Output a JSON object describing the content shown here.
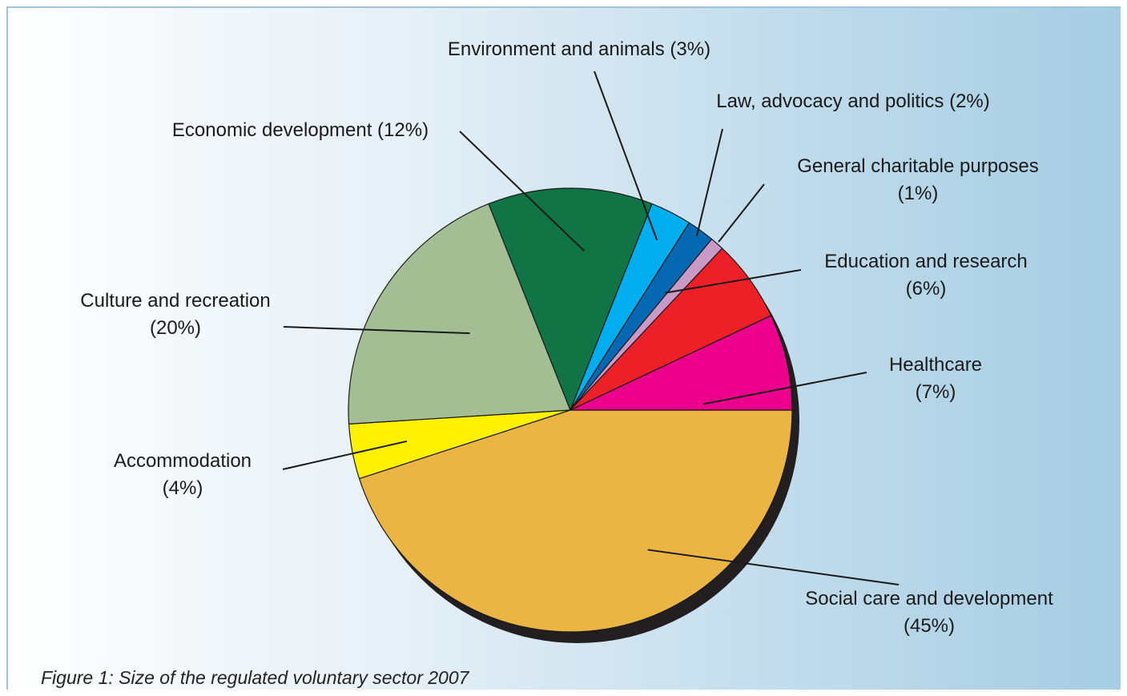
{
  "caption": "Figure 1: Size of the regulated voluntary sector 2007",
  "chart_data": {
    "type": "pie",
    "categories": [
      "Social care and development",
      "Accommodation",
      "Culture and recreation",
      "Economic development",
      "Environment and animals",
      "Law, advocacy and politics",
      "General charitable purposes",
      "Education and research",
      "Healthcare"
    ],
    "values": [
      45,
      4,
      20,
      12,
      3,
      2,
      1,
      6,
      7
    ],
    "labels": [
      [
        "Social care and development",
        "(45%)"
      ],
      [
        "Accommodation",
        "(4%)"
      ],
      [
        "Culture and recreation",
        "(20%)"
      ],
      [
        "Economic development (12%)"
      ],
      [
        "Environment and animals (3%)"
      ],
      [
        "Law, advocacy and politics (2%)"
      ],
      [
        "General charitable purposes",
        "(1%)"
      ],
      [
        "Education and research",
        "(6%)"
      ],
      [
        "Healthcare",
        "(7%)"
      ]
    ],
    "colors": [
      "#ebb544",
      "#fff100",
      "#a4be94",
      "#107445",
      "#00aeef",
      "#0468b3",
      "#c99ac6",
      "#ee2027",
      "#ec008c"
    ],
    "shadow_color": "#231f20",
    "legend": "none",
    "title": ""
  }
}
